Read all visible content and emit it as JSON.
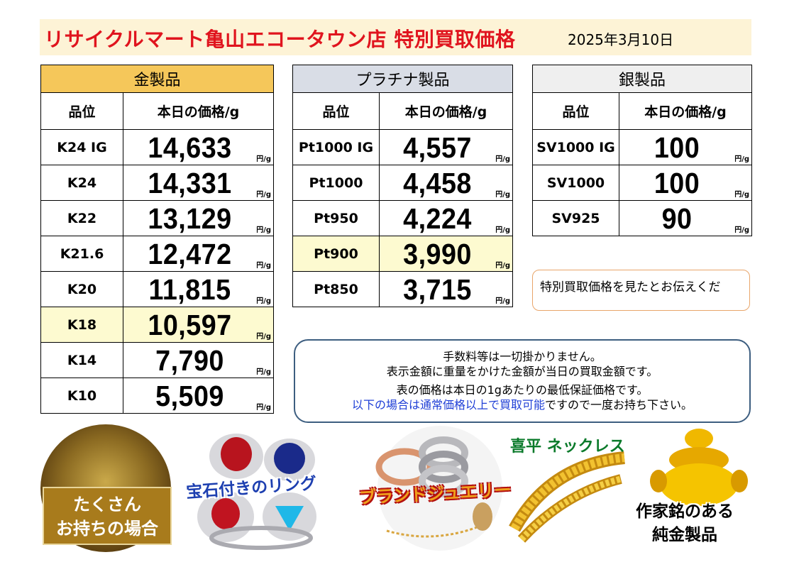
{
  "header": {
    "title": "リサイクルマート亀山エコータウン店 特別買取価格",
    "date": "2025年3月10日"
  },
  "columns": {
    "grade": "品位",
    "price": "本日の価格/g",
    "unit": "円/g"
  },
  "gold": {
    "title": "金製品",
    "rows": [
      {
        "grade": "K24 IG",
        "price": "14,633"
      },
      {
        "grade": "K24",
        "price": "14,331"
      },
      {
        "grade": "K22",
        "price": "13,129"
      },
      {
        "grade": "K21.6",
        "price": "12,472"
      },
      {
        "grade": "K20",
        "price": "11,815"
      },
      {
        "grade": "K18",
        "price": "10,597"
      },
      {
        "grade": "K14",
        "price": "7,790"
      },
      {
        "grade": "K10",
        "price": "5,509"
      }
    ]
  },
  "platinum": {
    "title": "プラチナ製品",
    "rows": [
      {
        "grade": "Pt1000 IG",
        "price": "4,557"
      },
      {
        "grade": "Pt1000",
        "price": "4,458"
      },
      {
        "grade": "Pt950",
        "price": "4,224"
      },
      {
        "grade": "Pt900",
        "price": "3,990"
      },
      {
        "grade": "Pt850",
        "price": "3,715"
      }
    ]
  },
  "silver": {
    "title": "銀製品",
    "rows": [
      {
        "grade": "SV1000 IG",
        "price": "100"
      },
      {
        "grade": "SV1000",
        "price": "100"
      },
      {
        "grade": "SV925",
        "price": "90"
      }
    ]
  },
  "notes": {
    "special": "特別買取価格を見たとお伝えくだ",
    "line1": "手数料等は一切掛かりません。",
    "line2": "表示金額に重量をかけた金額が当日の買取金額です。",
    "line3": "表の価格は本日の1gあたりの最低保証価格です。",
    "line4_blue": "以下の場合は通常価格以上で買取可能",
    "line4_rest": "ですので一度お持ち下さい。"
  },
  "promo": {
    "badge_line1": "たくさん",
    "badge_line2": "お持ちの場合",
    "rings": "宝石付きのリング",
    "brand": "ブランドジュエリー",
    "kihei": "喜平 ネックレス",
    "pure_line1": "作家銘のある",
    "pure_line2": "純金製品"
  },
  "colors": {
    "title_red": "#e0141e",
    "gold_header": "#f5c75a",
    "platinum_header": "#d9dde6",
    "silver_header": "#efefef",
    "highlight": "#fdfad0",
    "note_blue": "#1f3fd6"
  }
}
